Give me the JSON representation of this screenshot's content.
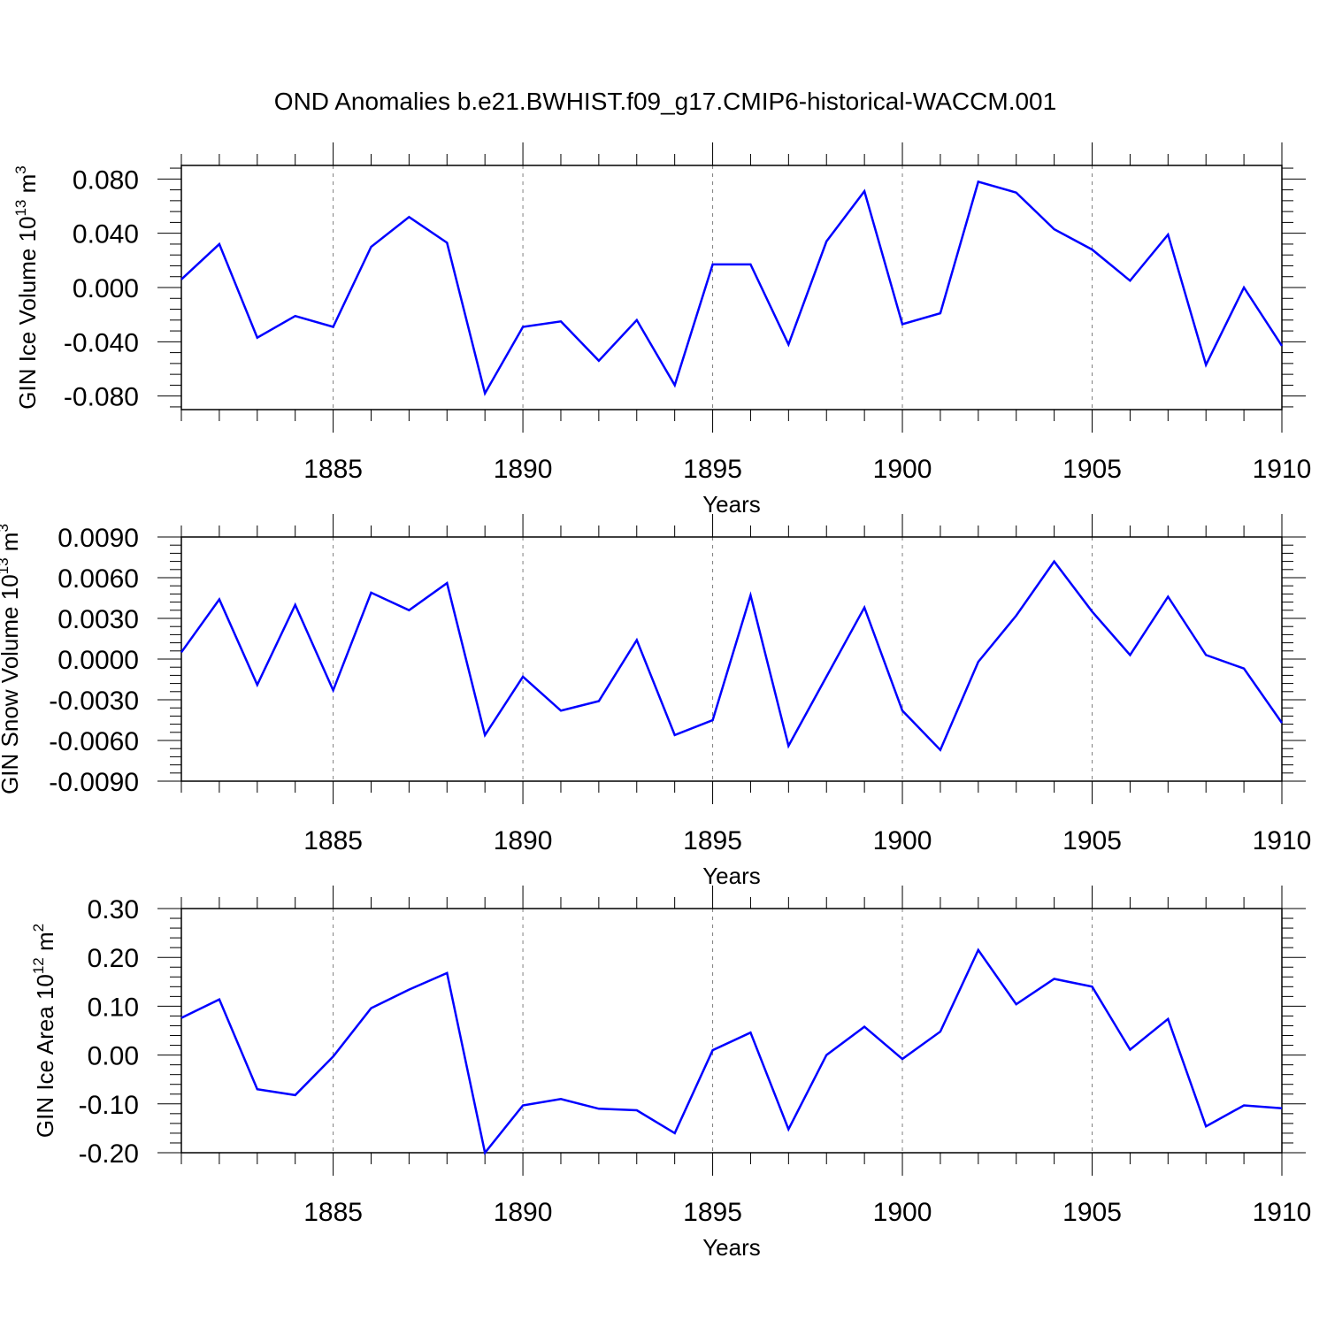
{
  "title": "OND Anomalies b.e21.BWHIST.f09_g17.CMIP6-historical-WACCM.001",
  "line_color": "#0000ff",
  "chart_data": [
    {
      "type": "line",
      "ylabel_main": "GIN Ice Volume 10",
      "ylabel_exp": "13",
      "ylabel_unit": " m",
      "ylabel_unit_exp": "3",
      "xlabel": "Years",
      "xlim": [
        1881,
        1910
      ],
      "ylim": [
        -0.09,
        0.09
      ],
      "xticks": [
        1885,
        1890,
        1895,
        1900,
        1905,
        1910
      ],
      "yticks": [
        -0.08,
        -0.04,
        0.0,
        0.04,
        0.08
      ],
      "ytick_labels": [
        "-0.080",
        "-0.040",
        "0.000",
        "0.040",
        "0.080"
      ],
      "grid": "vertical-dashed",
      "x": [
        1881,
        1882,
        1883,
        1884,
        1885,
        1886,
        1887,
        1888,
        1889,
        1890,
        1891,
        1892,
        1893,
        1894,
        1895,
        1896,
        1897,
        1898,
        1899,
        1900,
        1901,
        1902,
        1903,
        1904,
        1905,
        1906,
        1907,
        1908,
        1909,
        1910
      ],
      "values": [
        0.006,
        0.032,
        -0.037,
        -0.021,
        -0.029,
        0.03,
        0.052,
        0.033,
        -0.078,
        -0.029,
        -0.025,
        -0.054,
        -0.024,
        -0.072,
        0.017,
        0.017,
        -0.042,
        0.034,
        0.071,
        -0.027,
        -0.019,
        0.078,
        0.07,
        0.043,
        0.028,
        0.005,
        0.039,
        -0.057,
        0.0,
        -0.043
      ]
    },
    {
      "type": "line",
      "ylabel_main": "GIN Snow Volume 10",
      "ylabel_exp": "13",
      "ylabel_unit": " m",
      "ylabel_unit_exp": "3",
      "xlabel": "Years",
      "xlim": [
        1881,
        1910
      ],
      "ylim": [
        -0.009,
        0.009
      ],
      "xticks": [
        1885,
        1890,
        1895,
        1900,
        1905,
        1910
      ],
      "yticks": [
        -0.009,
        -0.006,
        -0.003,
        0.0,
        0.003,
        0.006,
        0.009
      ],
      "ytick_labels": [
        "-0.0090",
        "-0.0060",
        "-0.0030",
        "0.0000",
        "0.0030",
        "0.0060",
        "0.0090"
      ],
      "grid": "vertical-dashed",
      "x": [
        1881,
        1882,
        1883,
        1884,
        1885,
        1886,
        1887,
        1888,
        1889,
        1890,
        1891,
        1892,
        1893,
        1894,
        1895,
        1896,
        1897,
        1898,
        1899,
        1900,
        1901,
        1902,
        1903,
        1904,
        1905,
        1906,
        1907,
        1908,
        1909,
        1910
      ],
      "values": [
        0.0005,
        0.0044,
        -0.0019,
        0.004,
        -0.0023,
        0.0049,
        0.0036,
        0.0056,
        -0.0056,
        -0.0013,
        -0.0038,
        -0.0031,
        0.0014,
        -0.0056,
        -0.0045,
        0.0047,
        -0.0064,
        -0.0013,
        0.0038,
        -0.0038,
        -0.0067,
        -0.0002,
        0.0032,
        0.0072,
        0.0035,
        0.0003,
        0.0046,
        0.0003,
        -0.0007,
        -0.0047
      ]
    },
    {
      "type": "line",
      "ylabel_main": "GIN Ice Area 10",
      "ylabel_exp": "12",
      "ylabel_unit": " m",
      "ylabel_unit_exp": "2",
      "xlabel": "Years",
      "xlim": [
        1881,
        1910
      ],
      "ylim": [
        -0.2,
        0.3
      ],
      "xticks": [
        1885,
        1890,
        1895,
        1900,
        1905,
        1910
      ],
      "yticks": [
        -0.2,
        -0.1,
        0.0,
        0.1,
        0.2,
        0.3
      ],
      "ytick_labels": [
        "-0.20",
        "-0.10",
        "0.00",
        "0.10",
        "0.20",
        "0.30"
      ],
      "grid": "vertical-dashed",
      "x": [
        1881,
        1882,
        1883,
        1884,
        1885,
        1886,
        1887,
        1888,
        1889,
        1890,
        1891,
        1892,
        1893,
        1894,
        1895,
        1896,
        1897,
        1898,
        1899,
        1900,
        1901,
        1902,
        1903,
        1904,
        1905,
        1906,
        1907,
        1908,
        1909,
        1910
      ],
      "values": [
        0.076,
        0.114,
        -0.07,
        -0.082,
        -0.003,
        0.096,
        0.134,
        0.168,
        -0.2,
        -0.103,
        -0.09,
        -0.11,
        -0.113,
        -0.16,
        0.01,
        0.046,
        -0.152,
        0.0,
        0.058,
        -0.008,
        0.048,
        0.215,
        0.104,
        0.156,
        0.14,
        0.011,
        0.074,
        -0.146,
        -0.103,
        -0.109
      ]
    }
  ]
}
